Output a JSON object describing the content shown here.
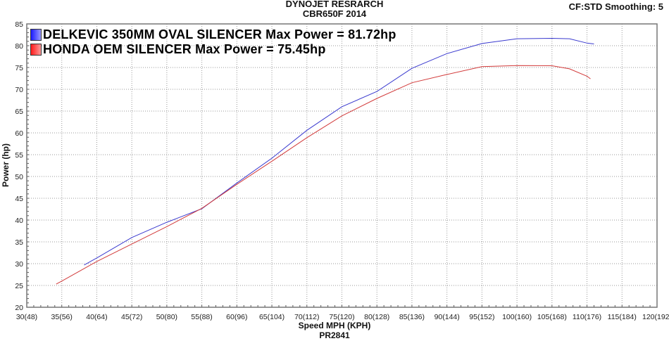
{
  "chart_data": {
    "type": "line",
    "title": "DYNOJET RESRARCH",
    "subtitle": "CBR650F 2014",
    "corner_note": "CF:STD Smoothing: 5",
    "xlabel": "Speed MPH (KPH)",
    "footer": "PR2841",
    "ylabel": "Power (hp)",
    "xlim": [
      30,
      120
    ],
    "ylim": [
      20,
      85
    ],
    "grid": true,
    "legend_position": "top-left",
    "x_ticks": [
      "30(48)",
      "35(56)",
      "40(64)",
      "45(72)",
      "50(80)",
      "55(88)",
      "60(96)",
      "65(104)",
      "70(112)",
      "75(120)",
      "80(128)",
      "85(136)",
      "90(144)",
      "95(152)",
      "100(160)",
      "105(168)",
      "110(176)",
      "115(184)",
      "120(192)"
    ],
    "y_ticks": [
      "20",
      "25",
      "30",
      "35",
      "40",
      "45",
      "50",
      "55",
      "60",
      "65",
      "70",
      "75",
      "80",
      "85"
    ],
    "series": [
      {
        "name": "DELKEVIC 350MM OVAL SILENCER  Max Power = 81.72hp",
        "color": "#3a3acf",
        "x": [
          38.2,
          40,
          45,
          50,
          55,
          60,
          65,
          70,
          75,
          80,
          85,
          90,
          95,
          100,
          105,
          107.5,
          110,
          111
        ],
        "y": [
          29.7,
          31.3,
          36.0,
          39.5,
          42.6,
          48.5,
          54.2,
          60.6,
          66.0,
          69.5,
          74.8,
          78.2,
          80.5,
          81.6,
          81.7,
          81.6,
          80.6,
          80.4
        ]
      },
      {
        "name": "HONDA OEM SILENCER Max Power = 75.45hp",
        "color": "#d23a3a",
        "x": [
          34.2,
          35,
          40,
          45,
          50,
          55,
          60,
          65,
          70,
          75,
          80,
          85,
          90,
          95,
          100,
          105,
          107.5,
          110,
          110.5
        ],
        "y": [
          25.3,
          26.0,
          30.5,
          34.5,
          38.5,
          42.7,
          48.2,
          53.5,
          58.9,
          63.9,
          67.9,
          71.5,
          73.4,
          75.2,
          75.45,
          75.4,
          74.7,
          73.0,
          72.4
        ]
      }
    ]
  }
}
